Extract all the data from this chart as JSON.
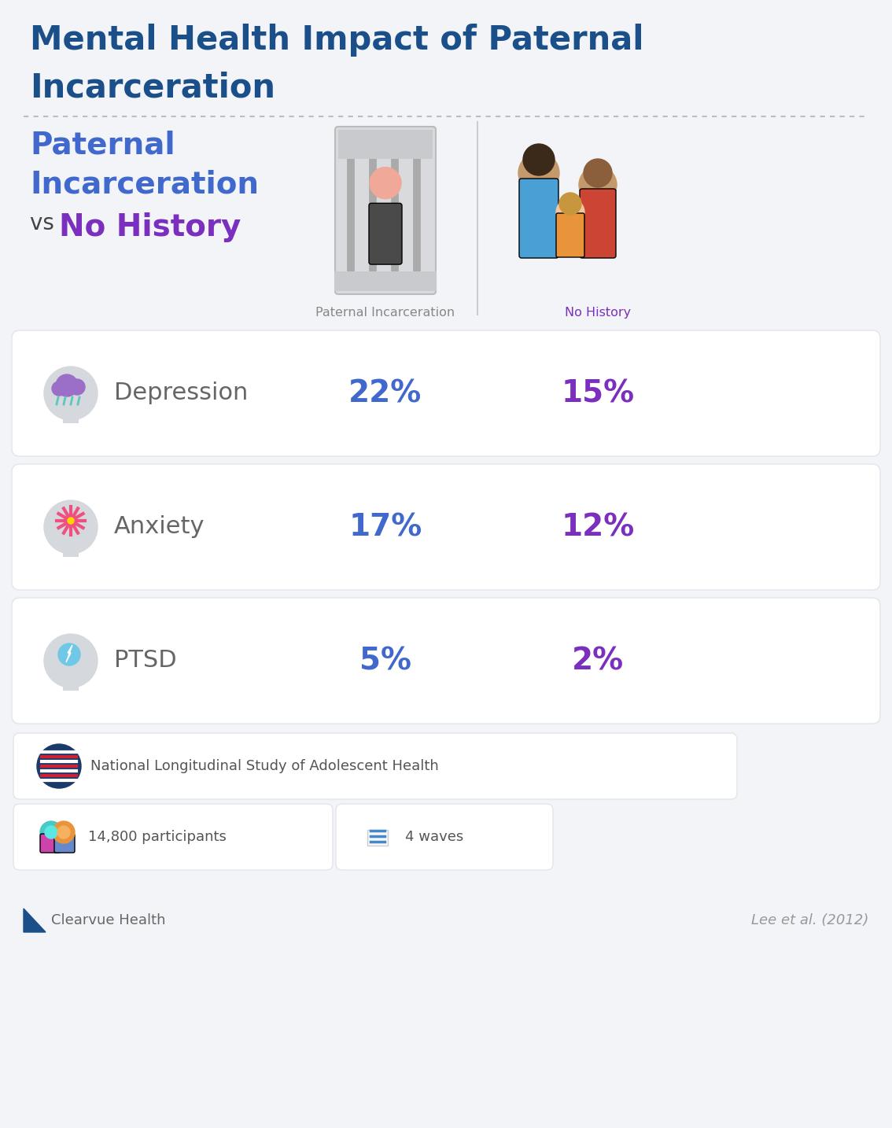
{
  "title_line1": "Mental Health Impact of Paternal",
  "title_line2": "Incarceration",
  "title_color": "#1B4F8A",
  "title_fontsize": 30,
  "vs_color_left": "#4169CD",
  "vs_color_vs": "#444444",
  "vs_color_right": "#7B2FBE",
  "col1_label": "Paternal Incarceration",
  "col2_label": "No History",
  "col1_color": "#4169CD",
  "col2_color": "#7B2FBE",
  "conditions": [
    "Depression",
    "Anxiety",
    "PTSD"
  ],
  "col1_values": [
    "22%",
    "17%",
    "5%"
  ],
  "col2_values": [
    "15%",
    "12%",
    "2%"
  ],
  "bg_color": "#F2F4F7",
  "card_color": "#FFFFFF",
  "label_color": "#666666",
  "source_text": "National Longitudinal Study of Adolescent Health",
  "participants_text": "14,800 participants",
  "waves_text": "4 waves",
  "brand_text": "Clearvue Health",
  "citation_text": "Lee et al. (2012)",
  "separator_color": "#BBBBCC"
}
